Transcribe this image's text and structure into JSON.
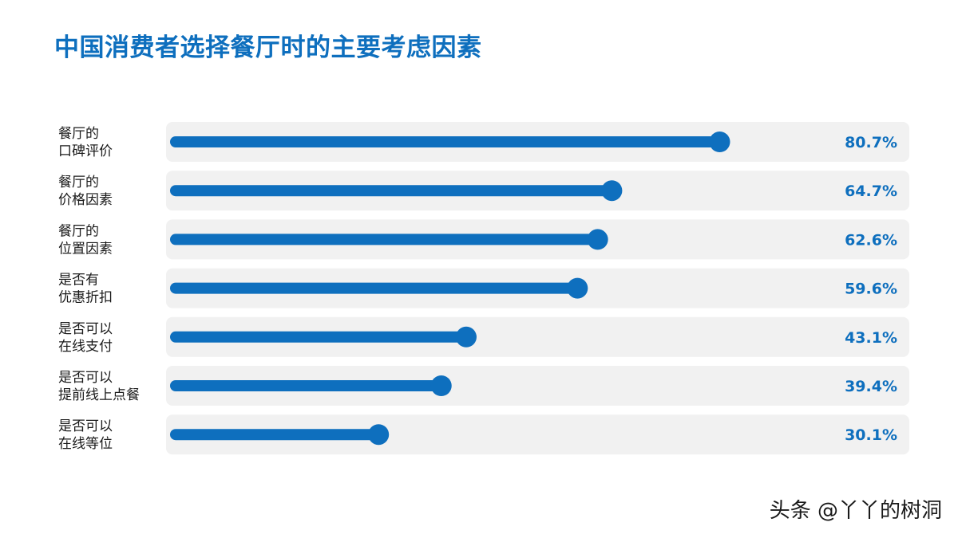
{
  "title": "中国消费者选择餐厅时的主要考虑因素",
  "watermark": "头条 @丫丫的树洞",
  "colors": {
    "accent": "#0e6fbe",
    "track": "#f1f1f1",
    "title": "#0e6fbe",
    "label": "#1a1a1a"
  },
  "chart_data": {
    "type": "bar",
    "orientation": "horizontal",
    "style": "lollipop",
    "categories": [
      [
        "餐厅的",
        "口碑评价"
      ],
      [
        "餐厅的",
        "价格因素"
      ],
      [
        "餐厅的",
        "位置因素"
      ],
      [
        "是否有",
        "优惠折扣"
      ],
      [
        "是否可以",
        "在线支付"
      ],
      [
        "是否可以",
        "提前线上点餐"
      ],
      [
        "是否可以",
        "在线等位"
      ]
    ],
    "values": [
      80.7,
      64.7,
      62.6,
      59.6,
      43.1,
      39.4,
      30.1
    ],
    "value_labels": [
      "80.7%",
      "64.7%",
      "62.6%",
      "59.6%",
      "43.1%",
      "39.4%",
      "30.1%"
    ],
    "xlim": [
      0,
      100
    ],
    "grid": false,
    "legend": "none"
  }
}
